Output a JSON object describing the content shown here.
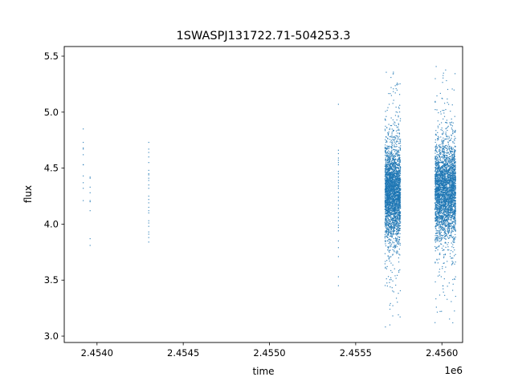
{
  "chart_data": {
    "type": "scatter",
    "title": "1SWASPJ131722.71-504253.3",
    "xlabel": "time",
    "ylabel": "flux",
    "x_offset_label": "1e6",
    "xlim": [
      2.45381,
      2.45612
    ],
    "ylim": [
      2.943,
      5.586
    ],
    "x_ticks": [
      2.454,
      2.4545,
      2.455,
      2.4555,
      2.456
    ],
    "x_tick_labels": [
      "2.4540",
      "2.4545",
      "2.4550",
      "2.4555",
      "2.4560"
    ],
    "y_ticks": [
      3.0,
      3.5,
      4.0,
      4.5,
      5.0,
      5.5
    ],
    "y_tick_labels": [
      "3.0",
      "3.5",
      "4.0",
      "4.5",
      "5.0",
      "5.5"
    ],
    "grid": false,
    "marker_color": "#1f77b4",
    "sparse_points": [
      {
        "x": 2.45392,
        "y": [
          4.85,
          4.73,
          4.68,
          4.67,
          4.62,
          4.53,
          4.53,
          4.43,
          4.37,
          4.32,
          4.21
        ]
      },
      {
        "x": 2.45396,
        "y": [
          4.42,
          4.41,
          4.33,
          4.28,
          4.21,
          4.2,
          4.12,
          3.87,
          3.81
        ]
      },
      {
        "x": 2.4543,
        "y": [
          4.73,
          4.67,
          4.64,
          4.6,
          4.55,
          4.48,
          4.45,
          4.44,
          4.41,
          4.39,
          4.35,
          4.32,
          4.25,
          4.22,
          4.19,
          4.15,
          4.12,
          4.1,
          4.03,
          4.01,
          3.98,
          3.93,
          3.91,
          3.88,
          3.84
        ]
      },
      {
        "x": 2.4554,
        "y": [
          5.07,
          4.66,
          4.63,
          4.59,
          4.57,
          4.55,
          4.53,
          4.47,
          4.45,
          4.42,
          4.39,
          4.37,
          4.34,
          4.32,
          4.28,
          4.24,
          4.21,
          4.17,
          4.14,
          4.1,
          4.06,
          4.03,
          3.99,
          3.97,
          3.94,
          3.85,
          3.79,
          3.71,
          3.53,
          3.45
        ]
      }
    ],
    "dense_clusters": [
      {
        "x_range": [
          2.45567,
          2.45576
        ],
        "y_median": 4.28,
        "y_std": 0.2,
        "y_range": [
          3.05,
          5.4
        ],
        "count": 3000
      },
      {
        "x_range": [
          2.45596,
          2.45608
        ],
        "y_median": 4.3,
        "y_std": 0.2,
        "y_range": [
          3.05,
          5.45
        ],
        "count": 3200
      }
    ]
  }
}
